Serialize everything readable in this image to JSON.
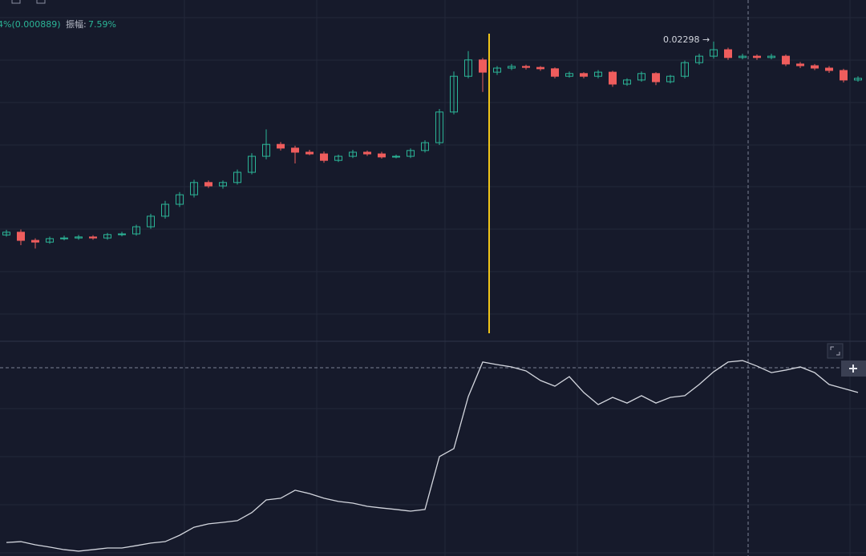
{
  "header": {
    "change": "4%(0.000889)",
    "amplitude_label": "振幅:",
    "amplitude": "7.59%"
  },
  "chart_data": [
    {
      "type": "candlestick",
      "annotation": "0.02298 →",
      "up_color": "#2bb597",
      "down_color": "#ef5d5d",
      "ylim": [
        0.0142,
        0.0242
      ],
      "open": [
        0.0173,
        0.01738,
        0.01714,
        0.01709,
        0.01719,
        0.01721,
        0.01724,
        0.01721,
        0.01731,
        0.01733,
        0.01754,
        0.01785,
        0.0182,
        0.01848,
        0.01884,
        0.01874,
        0.01884,
        0.01914,
        0.01961,
        0.01996,
        0.01985,
        0.01973,
        0.01968,
        0.01949,
        0.01961,
        0.01973,
        0.01968,
        0.01959,
        0.01961,
        0.01978,
        0.02001,
        0.02091,
        0.02196,
        0.02244,
        0.02208,
        0.0222,
        0.02225,
        0.02222,
        0.02218,
        0.02196,
        0.02204,
        0.02196,
        0.02208,
        0.02173,
        0.02185,
        0.02204,
        0.0218,
        0.02196,
        0.02236,
        0.02255,
        0.02274,
        0.02251,
        0.02255,
        0.02251,
        0.02255,
        0.02232,
        0.02227,
        0.0222,
        0.02213,
        0.02185
      ],
      "high": [
        0.01745,
        0.01746,
        0.0172,
        0.01725,
        0.01728,
        0.0173,
        0.01729,
        0.01736,
        0.01739,
        0.0176,
        0.01792,
        0.0183,
        0.01856,
        0.01892,
        0.0189,
        0.0189,
        0.01922,
        0.0197,
        0.0204,
        0.02003,
        0.01992,
        0.0198,
        0.01975,
        0.01966,
        0.0198,
        0.01978,
        0.01974,
        0.01966,
        0.01984,
        0.02008,
        0.021,
        0.0221,
        0.0227,
        0.0225,
        0.02226,
        0.02232,
        0.0223,
        0.02226,
        0.02222,
        0.0221,
        0.02208,
        0.02214,
        0.02212,
        0.0219,
        0.0221,
        0.02208,
        0.022,
        0.02242,
        0.02262,
        0.02298,
        0.0228,
        0.02262,
        0.0226,
        0.02262,
        0.0226,
        0.02238,
        0.02232,
        0.02226,
        0.02218,
        0.02196
      ],
      "low": [
        0.01725,
        0.017,
        0.0169,
        0.01704,
        0.01714,
        0.01716,
        0.01716,
        0.01716,
        0.01726,
        0.01728,
        0.01748,
        0.01778,
        0.01812,
        0.0184,
        0.01868,
        0.01866,
        0.01878,
        0.01908,
        0.01952,
        0.01978,
        0.0194,
        0.01964,
        0.01942,
        0.01944,
        0.01956,
        0.01962,
        0.01954,
        0.01955,
        0.01956,
        0.01972,
        0.01994,
        0.02084,
        0.0219,
        0.0215,
        0.022,
        0.02214,
        0.02216,
        0.02212,
        0.0219,
        0.02192,
        0.0219,
        0.0219,
        0.02165,
        0.02168,
        0.0218,
        0.0217,
        0.02175,
        0.0219,
        0.0223,
        0.02248,
        0.02244,
        0.02246,
        0.02244,
        0.02246,
        0.02226,
        0.0222,
        0.02214,
        0.02206,
        0.02178,
        0.0218
      ],
      "close": [
        0.01738,
        0.01714,
        0.01709,
        0.01719,
        0.01721,
        0.01724,
        0.01721,
        0.01731,
        0.01733,
        0.01754,
        0.01785,
        0.0182,
        0.01848,
        0.01884,
        0.01874,
        0.01884,
        0.01914,
        0.01961,
        0.01996,
        0.01985,
        0.01973,
        0.01968,
        0.01949,
        0.01961,
        0.01973,
        0.01968,
        0.01959,
        0.01961,
        0.01978,
        0.02001,
        0.02091,
        0.02196,
        0.02244,
        0.02208,
        0.0222,
        0.02225,
        0.02222,
        0.02218,
        0.02196,
        0.02204,
        0.02196,
        0.02208,
        0.02173,
        0.02185,
        0.02204,
        0.0218,
        0.02196,
        0.02236,
        0.02255,
        0.02274,
        0.02251,
        0.02255,
        0.02251,
        0.02255,
        0.02232,
        0.02227,
        0.0222,
        0.02213,
        0.02185,
        0.0219
      ]
    },
    {
      "type": "line",
      "color": "#d3d6de",
      "ylim": [
        0,
        100
      ],
      "values": [
        6.4,
        6.8,
        5.3,
        4.2,
        3.0,
        2.3,
        3.0,
        3.8,
        3.8,
        4.9,
        6.1,
        6.8,
        9.8,
        13.6,
        15.2,
        15.9,
        16.7,
        20.5,
        26.5,
        27.3,
        31.1,
        29.5,
        27.3,
        25.8,
        25.0,
        23.5,
        22.7,
        22.0,
        21.2,
        22.0,
        47.0,
        50.8,
        75.4,
        91.7,
        90.5,
        89.4,
        87.5,
        83.0,
        80.3,
        84.8,
        77.3,
        71.6,
        75.0,
        72.3,
        75.8,
        72.3,
        75.0,
        75.8,
        81.1,
        87.1,
        91.7,
        92.4,
        89.8,
        86.7,
        87.9,
        89.4,
        86.7,
        81.1,
        79.2,
        77.3
      ]
    }
  ]
}
